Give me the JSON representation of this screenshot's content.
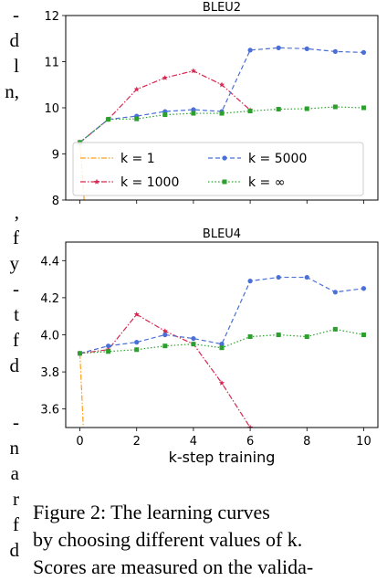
{
  "left_text_fragments": [
    "-",
    "d",
    "l",
    "n,",
    ",",
    "f",
    "y",
    "-",
    "t",
    "f",
    "d",
    "-",
    "n",
    "a",
    "r",
    "f",
    "d"
  ],
  "chart_data": [
    {
      "type": "line",
      "title": "BLEU2",
      "xlabel": "",
      "ylabel": "",
      "xlim": [
        -0.5,
        10.5
      ],
      "ylim": [
        8,
        12
      ],
      "yticks": [
        "8",
        "9",
        "10",
        "11",
        "12"
      ],
      "xticks": [],
      "legend_placement": "lower-right",
      "series": [
        {
          "name": "k = 1",
          "color": "#ff9f1c",
          "marker": "none",
          "dash": "dashdot",
          "x": [
            0,
            0.15
          ],
          "y": [
            9.25,
            8.0
          ]
        },
        {
          "name": "k = 1000",
          "color": "#d62750",
          "marker": "star",
          "dash": "dashdot",
          "x": [
            0,
            1,
            2,
            3,
            4,
            5,
            6
          ],
          "y": [
            9.25,
            9.75,
            10.4,
            10.65,
            10.8,
            10.5,
            9.95
          ]
        },
        {
          "name": "k = 5000",
          "color": "#4a6fd6",
          "marker": "circle",
          "dash": "dashed",
          "x": [
            0,
            1,
            2,
            3,
            4,
            5,
            6,
            7,
            8,
            9,
            10
          ],
          "y": [
            9.25,
            9.75,
            9.82,
            9.92,
            9.96,
            9.92,
            11.25,
            11.3,
            11.28,
            11.22,
            11.2
          ]
        },
        {
          "name": "k = ∞",
          "color": "#2ca02c",
          "marker": "square",
          "dash": "dotted",
          "x": [
            0,
            1,
            2,
            3,
            4,
            5,
            6,
            7,
            8,
            9,
            10
          ],
          "y": [
            9.25,
            9.75,
            9.76,
            9.85,
            9.88,
            9.88,
            9.93,
            9.97,
            9.98,
            10.02,
            10.0
          ]
        }
      ]
    },
    {
      "type": "line",
      "title": "BLEU4",
      "xlabel": "k-step training",
      "ylabel": "",
      "xlim": [
        -0.5,
        10.5
      ],
      "ylim": [
        3.5,
        4.5
      ],
      "yticks": [
        "3.6",
        "3.8",
        "4.0",
        "4.2",
        "4.4"
      ],
      "xticks": [
        "0",
        "2",
        "4",
        "6",
        "8",
        "10"
      ],
      "series": [
        {
          "name": "k = 1",
          "color": "#ff9f1c",
          "marker": "none",
          "dash": "dashdot",
          "x": [
            0,
            0.12
          ],
          "y": [
            3.9,
            3.5
          ]
        },
        {
          "name": "k = 1000",
          "color": "#d62750",
          "marker": "star",
          "dash": "dashdot",
          "x": [
            0,
            1,
            2,
            3,
            4,
            5,
            6
          ],
          "y": [
            3.9,
            3.92,
            4.11,
            4.02,
            3.95,
            3.74,
            3.5
          ]
        },
        {
          "name": "k = 5000",
          "color": "#4a6fd6",
          "marker": "circle",
          "dash": "dashed",
          "x": [
            0,
            1,
            2,
            3,
            4,
            5,
            6,
            7,
            8,
            9,
            10
          ],
          "y": [
            3.9,
            3.94,
            3.96,
            4.0,
            3.98,
            3.95,
            4.29,
            4.31,
            4.31,
            4.23,
            4.25
          ]
        },
        {
          "name": "k = ∞",
          "color": "#2ca02c",
          "marker": "square",
          "dash": "dotted",
          "x": [
            0,
            1,
            2,
            3,
            4,
            5,
            6,
            7,
            8,
            9,
            10
          ],
          "y": [
            3.9,
            3.91,
            3.92,
            3.94,
            3.95,
            3.93,
            3.99,
            4.0,
            3.99,
            4.03,
            4.0
          ]
        }
      ]
    }
  ],
  "caption": {
    "lines": [
      "Figure 2:  The learning curves",
      "by choosing different values of k.",
      "Scores are measured on the valida-"
    ]
  }
}
